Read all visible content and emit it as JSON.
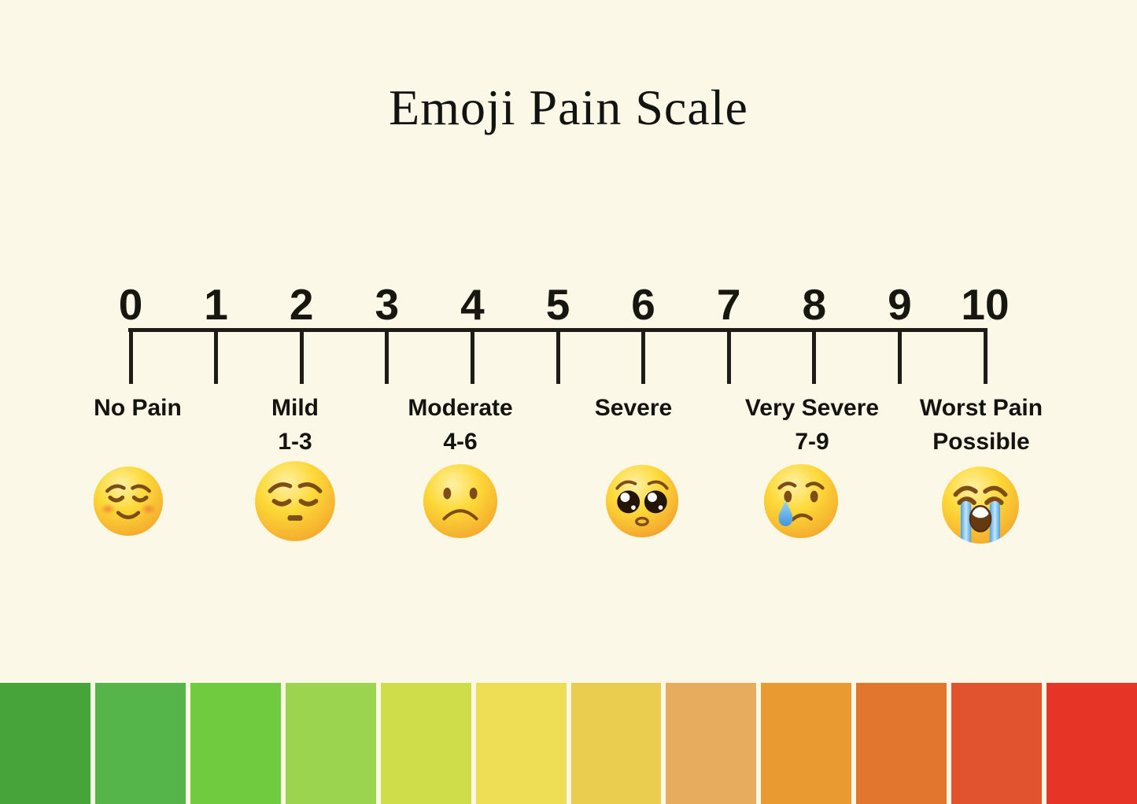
{
  "title": "Emoji Pain Scale",
  "page": {
    "background_color": "#FBF8E7",
    "line_color": "#1d1c16",
    "text_color": "#141310"
  },
  "axis": {
    "ticks": [
      "0",
      "1",
      "2",
      "3",
      "4",
      "5",
      "6",
      "7",
      "8",
      "9",
      "10"
    ],
    "min": 0,
    "max": 10
  },
  "scale": {
    "items": [
      {
        "line1": "No Pain",
        "line2": "",
        "emoji_name": "relieved-face",
        "emoji_char": "😌"
      },
      {
        "line1": "Mild",
        "line2": "1-3",
        "emoji_name": "pensive-face",
        "emoji_char": "😔"
      },
      {
        "line1": "Moderate",
        "line2": "4-6",
        "emoji_name": "frowning-face",
        "emoji_char": "☹️"
      },
      {
        "line1": "Severe",
        "line2": "",
        "emoji_name": "pleading-face",
        "emoji_char": "🥺"
      },
      {
        "line1": "Very Severe",
        "line2": "7-9",
        "emoji_name": "crying-face",
        "emoji_char": "😢"
      },
      {
        "line1": "Worst Pain",
        "line2": "Possible",
        "emoji_name": "loudly-crying-face",
        "emoji_char": "😭"
      }
    ]
  },
  "gradient_bar": {
    "colors": [
      "#47a43a",
      "#56b54a",
      "#70cb3f",
      "#9bd44e",
      "#d0dd4b",
      "#eede56",
      "#eacc4f",
      "#e7ac5e",
      "#e99a30",
      "#e2762f",
      "#e1522f",
      "#e63527"
    ]
  }
}
